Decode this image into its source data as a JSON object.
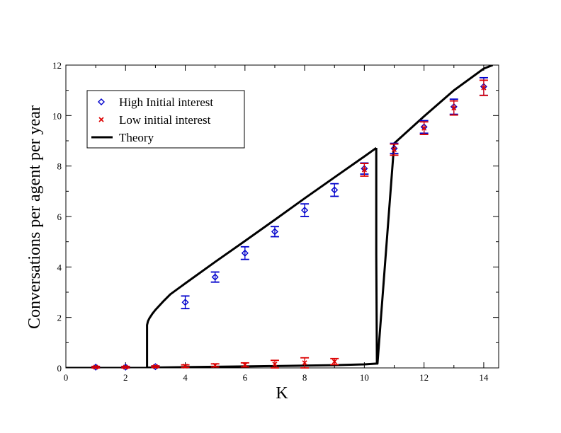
{
  "chart_data": {
    "type": "scatter",
    "title": "",
    "xlabel": "K",
    "ylabel": "Conversations per agent per year",
    "xlim": [
      0,
      14.5
    ],
    "ylim": [
      0,
      12
    ],
    "x_ticks": [
      "0",
      "2",
      "4",
      "6",
      "8",
      "10",
      "12",
      "14"
    ],
    "y_ticks": [
      "0",
      "2",
      "4",
      "6",
      "8",
      "10",
      "12"
    ],
    "legend_placement": "top-left",
    "grid": false,
    "series": [
      {
        "name": "High Initial  interest",
        "kind": "points",
        "marker": "diamond",
        "color": "#0000cc",
        "x": [
          1,
          2,
          3,
          4,
          5,
          6,
          7,
          8,
          9,
          10,
          11,
          12,
          13,
          14
        ],
        "y": [
          0.03,
          0.03,
          0.05,
          2.6,
          3.6,
          4.55,
          5.4,
          6.25,
          7.05,
          7.9,
          8.7,
          9.55,
          10.35,
          11.15
        ],
        "err": [
          0.03,
          0.03,
          0.03,
          0.25,
          0.2,
          0.25,
          0.2,
          0.25,
          0.25,
          0.22,
          0.2,
          0.25,
          0.3,
          0.35
        ]
      },
      {
        "name": "Low initial interest",
        "kind": "points",
        "marker": "x",
        "color": "#dd0000",
        "x": [
          1,
          2,
          3,
          4,
          5,
          6,
          7,
          8,
          9,
          10,
          11,
          12,
          13,
          14
        ],
        "y": [
          0.03,
          0.03,
          0.05,
          0.07,
          0.1,
          0.12,
          0.15,
          0.2,
          0.25,
          7.85,
          8.65,
          9.5,
          10.3,
          11.1
        ],
        "err": [
          0.03,
          0.03,
          0.03,
          0.05,
          0.06,
          0.08,
          0.15,
          0.2,
          0.12,
          0.25,
          0.22,
          0.25,
          0.28,
          0.3
        ]
      },
      {
        "name": "Theory",
        "kind": "line",
        "color": "#000000",
        "segments": [
          {
            "x": [
              0,
              2.72,
              2.72,
              2.75,
              2.8,
              2.9,
              3.0,
              3.25,
              3.5,
              4,
              5,
              6,
              7,
              8,
              9,
              10,
              10.38,
              10.4
            ],
            "y": [
              0,
              0,
              1.7,
              1.85,
              1.97,
              2.15,
              2.3,
              2.62,
              2.92,
              3.35,
              4.2,
              5.03,
              5.87,
              6.72,
              7.55,
              8.38,
              8.7,
              8.72
            ]
          },
          {
            "x": [
              10.4,
              10.4,
              10.42,
              10.44,
              11,
              12,
              13,
              14,
              14.3
            ],
            "y": [
              8.72,
              4.5,
              0.2,
              0.17,
              8.9,
              9.97,
              11.0,
              11.86,
              12.0
            ]
          },
          {
            "x": [
              2.72,
              4,
              6,
              8,
              9,
              10,
              10.42
            ],
            "y": [
              0.01,
              0.03,
              0.06,
              0.09,
              0.11,
              0.14,
              0.17
            ]
          }
        ]
      }
    ]
  }
}
